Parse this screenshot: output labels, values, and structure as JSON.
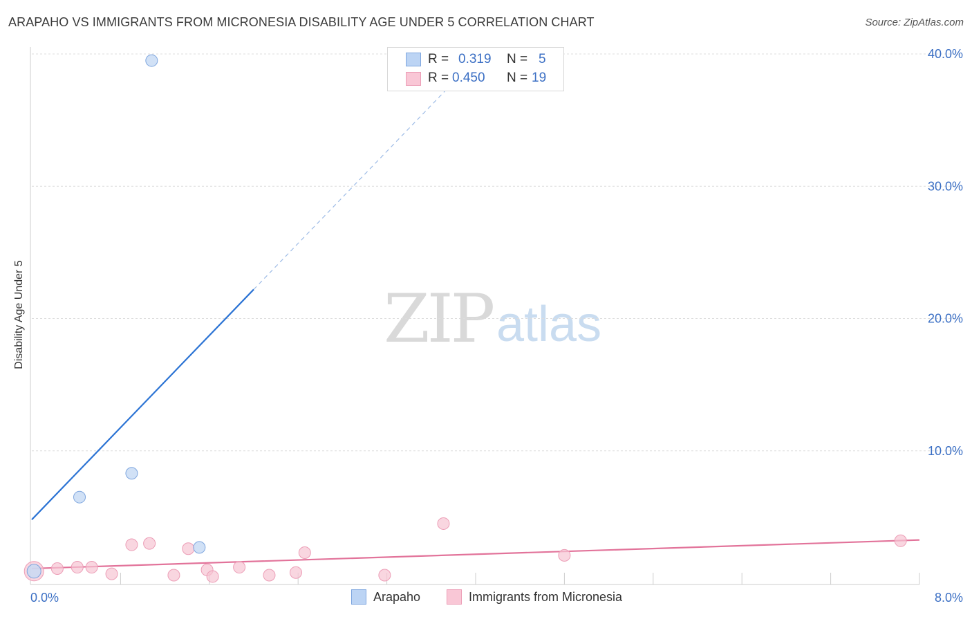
{
  "header": {
    "title": "ARAPAHO VS IMMIGRANTS FROM MICRONESIA DISABILITY AGE UNDER 5 CORRELATION CHART",
    "source": "Source: ZipAtlas.com"
  },
  "watermark": {
    "zip": "ZIP",
    "atlas": "atlas"
  },
  "legend": {
    "rows": [
      {
        "r_label": "R =",
        "r_value": "0.319",
        "n_label": "N =",
        "n_value": "5"
      },
      {
        "r_label": "R =",
        "r_value": "0.450",
        "n_label": "N =",
        "n_value": "19"
      }
    ]
  },
  "bottom_legend": {
    "items": [
      "Arapaho",
      "Immigrants from Micronesia"
    ]
  },
  "chart_data": {
    "type": "scatter",
    "title": "ARAPAHO VS IMMIGRANTS FROM MICRONESIA DISABILITY AGE UNDER 5 CORRELATION CHART",
    "xlabel": "",
    "ylabel": "Disability Age Under 5",
    "xlim": [
      0,
      8
    ],
    "ylim": [
      0,
      41
    ],
    "x_tick_labels": [
      "0.0%",
      "8.0%"
    ],
    "y_ticks": [
      10,
      20,
      30,
      40
    ],
    "y_tick_labels": [
      "10.0%",
      "20.0%",
      "30.0%",
      "40.0%"
    ],
    "grid": true,
    "colors": {
      "arapaho": "#6b9fe0",
      "micronesia": "#ec8fac",
      "arapaho_line": "#2b73d4",
      "micronesia_line": "#e2739a",
      "tick_label": "#3b6fc4"
    },
    "series": [
      {
        "name": "Arapaho",
        "points": [
          {
            "x": 0.02,
            "y": 0.9
          },
          {
            "x": 0.43,
            "y": 6.5
          },
          {
            "x": 0.9,
            "y": 8.3
          },
          {
            "x": 1.08,
            "y": 39.5
          },
          {
            "x": 1.51,
            "y": 2.7
          }
        ],
        "trend": {
          "solid_x": [
            0.0,
            2.0
          ],
          "dashed_x": [
            2.0,
            3.8
          ],
          "intercept": 4.8,
          "slope": 8.7
        }
      },
      {
        "name": "Immigrants from Micronesia",
        "points": [
          {
            "x": 0.02,
            "y": 0.9
          },
          {
            "x": 0.23,
            "y": 1.1
          },
          {
            "x": 0.41,
            "y": 1.2
          },
          {
            "x": 0.54,
            "y": 1.2
          },
          {
            "x": 0.72,
            "y": 0.7
          },
          {
            "x": 0.9,
            "y": 2.9
          },
          {
            "x": 1.06,
            "y": 3.0
          },
          {
            "x": 1.28,
            "y": 0.6
          },
          {
            "x": 1.41,
            "y": 2.6
          },
          {
            "x": 1.58,
            "y": 1.0
          },
          {
            "x": 1.63,
            "y": 0.5
          },
          {
            "x": 1.87,
            "y": 1.2
          },
          {
            "x": 2.14,
            "y": 0.6
          },
          {
            "x": 2.38,
            "y": 0.8
          },
          {
            "x": 2.46,
            "y": 2.3
          },
          {
            "x": 3.18,
            "y": 0.6
          },
          {
            "x": 3.71,
            "y": 4.5
          },
          {
            "x": 4.8,
            "y": 2.1
          },
          {
            "x": 7.83,
            "y": 3.2
          }
        ],
        "trend": {
          "solid_x": [
            0.0,
            8.0
          ],
          "intercept": 1.1,
          "slope": 0.27
        }
      }
    ]
  }
}
